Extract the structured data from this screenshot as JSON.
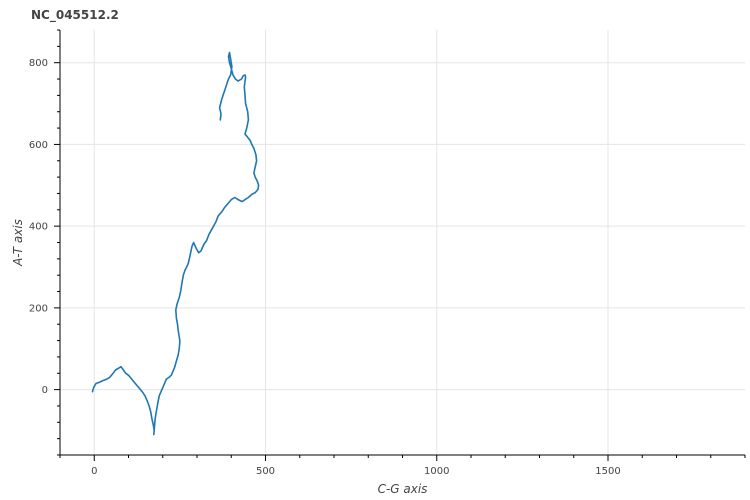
{
  "chart_data": {
    "type": "line",
    "title": "NC_045512.2",
    "xlabel": "C-G axis",
    "ylabel": "A-T axis",
    "xlim": [
      -100,
      1900
    ],
    "ylim": [
      -160,
      880
    ],
    "x_ticks": [
      0,
      500,
      1000,
      1500
    ],
    "y_ticks": [
      0,
      200,
      400,
      600,
      800
    ],
    "x_minor_step": 100,
    "y_minor_step": 40,
    "grid": true,
    "line_color": "#1f77b4",
    "series": [
      {
        "x": [
          -5,
          -2,
          5,
          15,
          25,
          35,
          45,
          55,
          62,
          70,
          78,
          85,
          92,
          100,
          110,
          120,
          130,
          140,
          148,
          155,
          160,
          165,
          168,
          172,
          175,
          174,
          176,
          178,
          182,
          186,
          190,
          195,
          200,
          205,
          210,
          218,
          225,
          230,
          235,
          240,
          245,
          248,
          250,
          248,
          245,
          243,
          240,
          238,
          242,
          248,
          252,
          256,
          260,
          265,
          270,
          275,
          280,
          285,
          290,
          298,
          305,
          312,
          320,
          328,
          335,
          345,
          355,
          362,
          372,
          380,
          390,
          400,
          410,
          420,
          432,
          440,
          450,
          460,
          470,
          478,
          480,
          476,
          470,
          466,
          470,
          474,
          472,
          466,
          460,
          455,
          450,
          446,
          440,
          445,
          450,
          448,
          442,
          440,
          438,
          440,
          442,
          440,
          435,
          430,
          420,
          412,
          405,
          400,
          395,
          392,
          395,
          398,
          402,
          398,
          392,
          388,
          382,
          378,
          372,
          366,
          370,
          368
        ],
        "y": [
          -5,
          5,
          15,
          18,
          22,
          25,
          30,
          40,
          48,
          52,
          56,
          48,
          40,
          35,
          25,
          15,
          5,
          -5,
          -15,
          -28,
          -40,
          -55,
          -70,
          -85,
          -100,
          -110,
          -90,
          -70,
          -50,
          -30,
          -15,
          -5,
          5,
          15,
          25,
          30,
          35,
          45,
          55,
          70,
          85,
          100,
          118,
          130,
          145,
          160,
          175,
          195,
          210,
          225,
          240,
          260,
          280,
          292,
          300,
          310,
          330,
          350,
          360,
          345,
          335,
          340,
          355,
          365,
          380,
          395,
          410,
          425,
          435,
          445,
          455,
          465,
          470,
          465,
          460,
          465,
          470,
          478,
          482,
          490,
          500,
          510,
          520,
          530,
          545,
          560,
          575,
          590,
          600,
          610,
          615,
          620,
          625,
          640,
          660,
          680,
          700,
          720,
          740,
          755,
          765,
          770,
          768,
          760,
          755,
          760,
          770,
          785,
          800,
          815,
          825,
          810,
          790,
          770,
          760,
          750,
          735,
          725,
          710,
          690,
          675,
          660
        ]
      }
    ]
  }
}
